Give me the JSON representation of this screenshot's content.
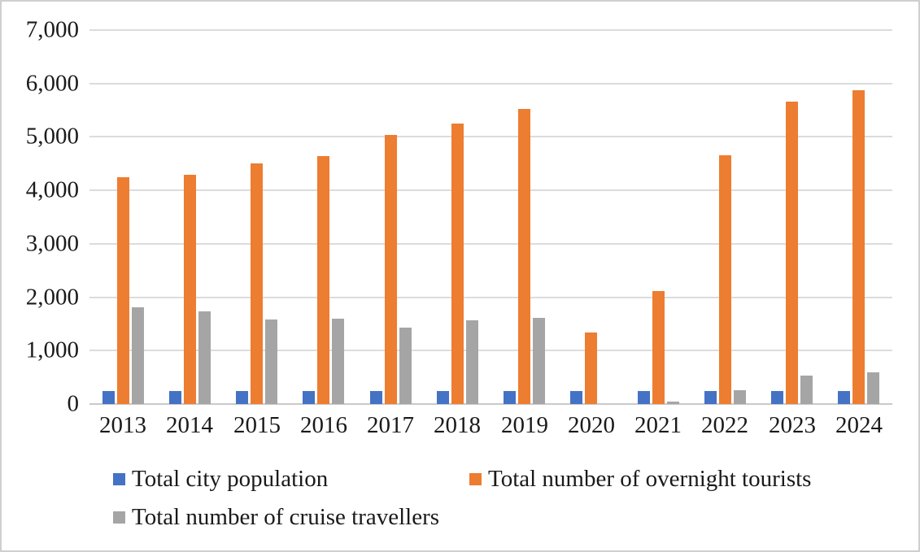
{
  "chart_data": {
    "type": "bar",
    "title": "",
    "xlabel": "",
    "ylabel": "",
    "categories": [
      "2013",
      "2014",
      "2015",
      "2016",
      "2017",
      "2018",
      "2019",
      "2020",
      "2021",
      "2022",
      "2023",
      "2024"
    ],
    "series": [
      {
        "name": "Total city population",
        "color": "#4472C4",
        "values": [
          250,
          250,
          250,
          250,
          250,
          250,
          250,
          250,
          250,
          250,
          250,
          250
        ]
      },
      {
        "name": "Total number of overnight tourists",
        "color": "#ED7D31",
        "values": [
          4250,
          4290,
          4500,
          4640,
          5030,
          5250,
          5520,
          1340,
          2120,
          4650,
          5660,
          5870
        ]
      },
      {
        "name": "Total number of cruise travellers",
        "color": "#A5A5A5",
        "values": [
          1810,
          1730,
          1580,
          1600,
          1430,
          1560,
          1610,
          0,
          40,
          260,
          530,
          590
        ]
      }
    ],
    "ylim": [
      0,
      7000
    ],
    "ytick_step": 1000,
    "ytick_labels": [
      "0",
      "1,000",
      "2,000",
      "3,000",
      "4,000",
      "5,000",
      "6,000",
      "7,000"
    ],
    "grid": true,
    "legend_position": "bottom",
    "legend_rows": [
      [
        0,
        1
      ],
      [
        2
      ]
    ]
  }
}
